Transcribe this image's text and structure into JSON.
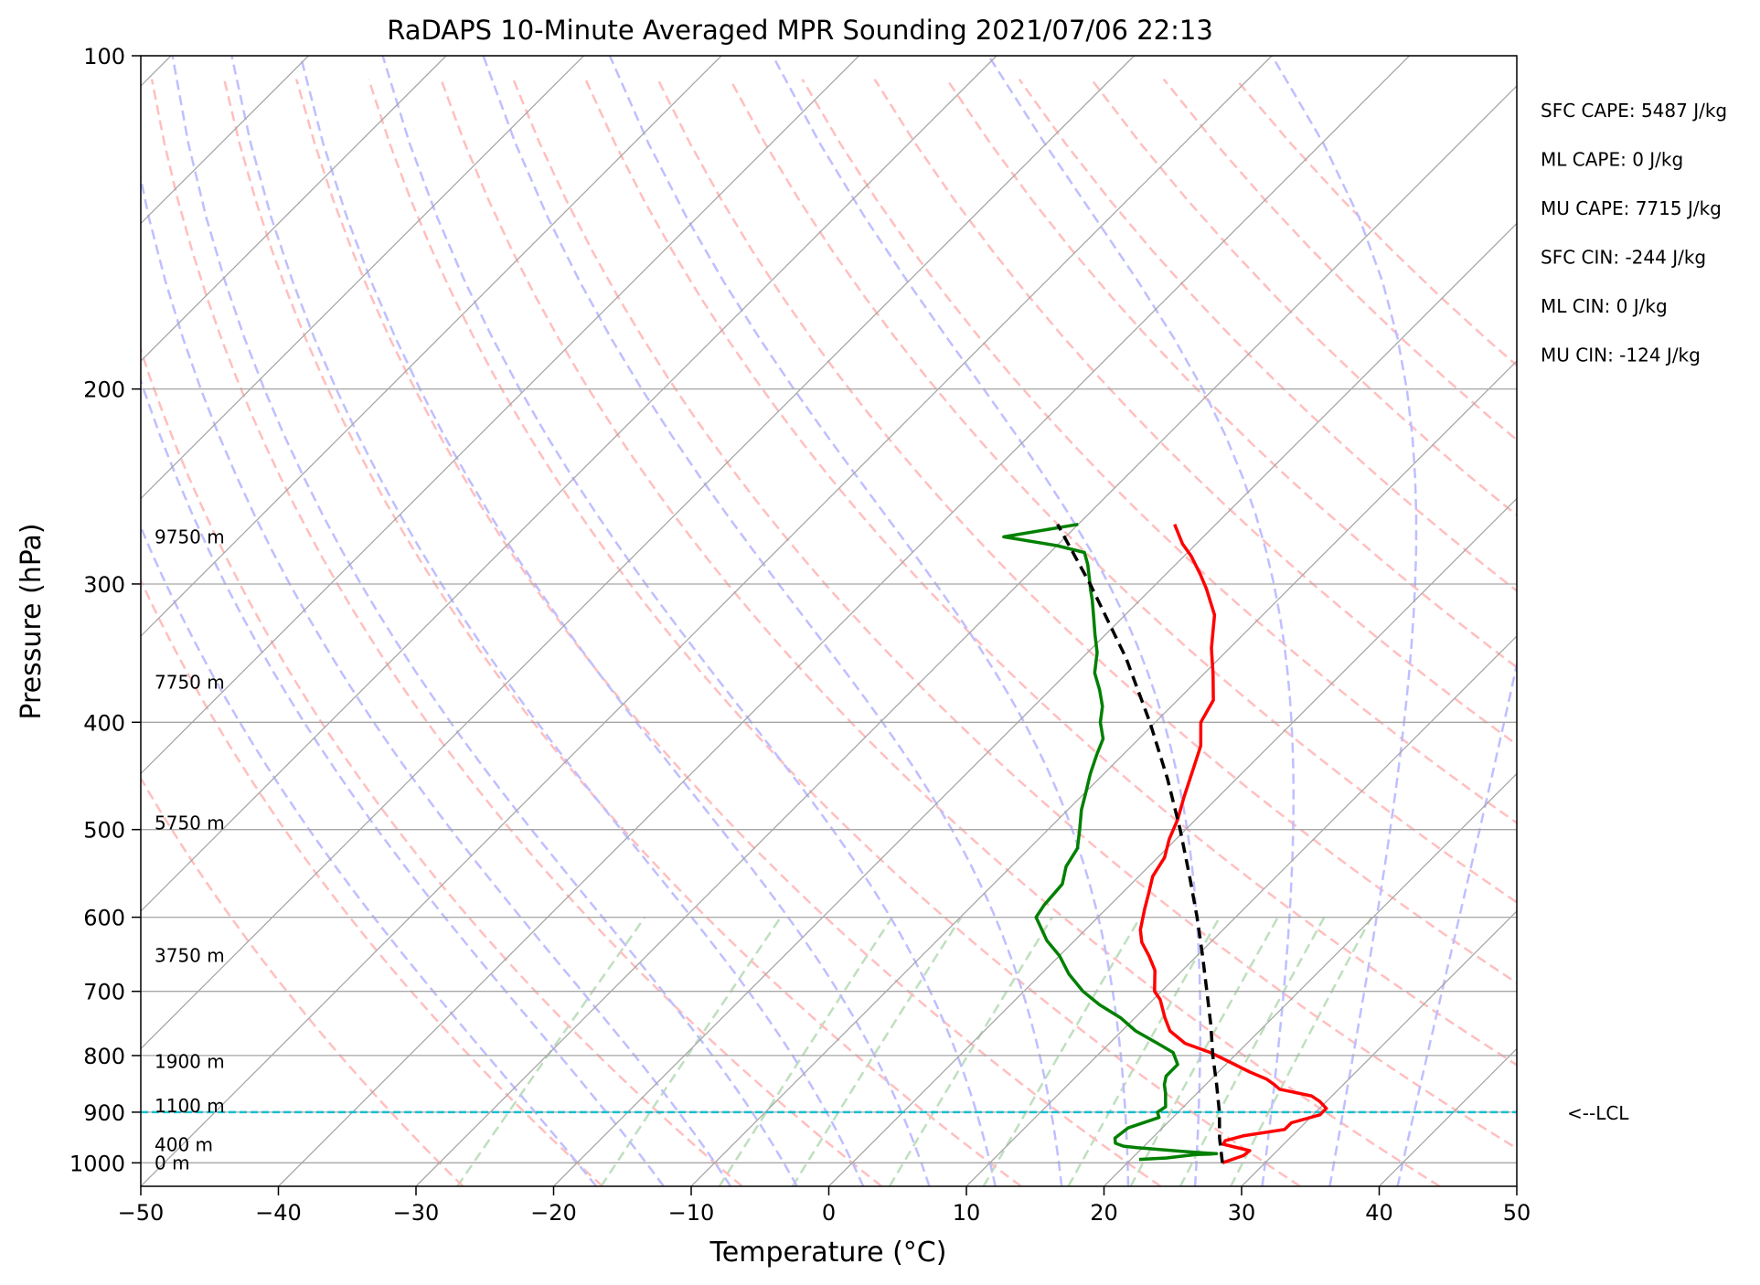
{
  "chart_data": {
    "type": "line",
    "title": "RaDAPS 10-Minute Averaged MPR Sounding 2021/07/06 22:13",
    "xlabel": "Temperature (°C)",
    "ylabel": "Pressure (hPa)",
    "xlim": [
      -50,
      50
    ],
    "ylim": [
      1050,
      100
    ],
    "y_scale": "log",
    "skew": true,
    "x_ticks": [
      "−50",
      "−40",
      "−30",
      "−20",
      "−10",
      "0",
      "10",
      "20",
      "30",
      "40",
      "50"
    ],
    "y_ticks": [
      "100",
      "200",
      "300",
      "400",
      "500",
      "600",
      "700",
      "800",
      "900",
      "1000"
    ],
    "height_labels": [
      {
        "text": "9750 m",
        "p": 272
      },
      {
        "text": "7750 m",
        "p": 368
      },
      {
        "text": "5750 m",
        "p": 493
      },
      {
        "text": "3750 m",
        "p": 650
      },
      {
        "text": "1900 m",
        "p": 810
      },
      {
        "text": "1100 m",
        "p": 888
      },
      {
        "text": "400 m",
        "p": 963
      },
      {
        "text": "0 m",
        "p": 1000
      }
    ],
    "stats": [
      "SFC CAPE: 5487 J/kg",
      "ML CAPE: 0 J/kg",
      "MU CAPE: 7715 J/kg",
      "SFC CIN: -244 J/kg",
      "ML CIN: 0 J/kg",
      "MU CIN: -124 J/kg"
    ],
    "lcl": {
      "label": "<--LCL",
      "p": 900,
      "color": "#17becf"
    },
    "series": [
      {
        "color": "#ff0000",
        "points": [
          [
            1000,
            26.9
          ],
          [
            985,
            27.9
          ],
          [
            975,
            28.0
          ],
          [
            962,
            25.6
          ],
          [
            955,
            25.5
          ],
          [
            945,
            26.5
          ],
          [
            933,
            29.0
          ],
          [
            920,
            29.0
          ],
          [
            905,
            30.5
          ],
          [
            893,
            30.5
          ],
          [
            880,
            29.5
          ],
          [
            870,
            28.5
          ],
          [
            858,
            25.7
          ],
          [
            850,
            25.0
          ],
          [
            840,
            24.0
          ],
          [
            828,
            22.3
          ],
          [
            810,
            20.0
          ],
          [
            795,
            18.0
          ],
          [
            780,
            15.5
          ],
          [
            760,
            13.5
          ],
          [
            740,
            12.2
          ],
          [
            712,
            10.5
          ],
          [
            700,
            9.5
          ],
          [
            670,
            8.0
          ],
          [
            650,
            6.5
          ],
          [
            632,
            5.0
          ],
          [
            616,
            4.0
          ],
          [
            590,
            2.8
          ],
          [
            572,
            2.0
          ],
          [
            551,
            1.0
          ],
          [
            530,
            0.5
          ],
          [
            510,
            -0.5
          ],
          [
            490,
            -1.3
          ],
          [
            467,
            -2.5
          ],
          [
            440,
            -3.9
          ],
          [
            420,
            -5.0
          ],
          [
            400,
            -6.7
          ],
          [
            382,
            -7.4
          ],
          [
            362,
            -9.3
          ],
          [
            343,
            -11.3
          ],
          [
            320,
            -13.5
          ],
          [
            303,
            -16.0
          ],
          [
            294,
            -17.5
          ],
          [
            283,
            -19.5
          ],
          [
            276,
            -21.0
          ],
          [
            265,
            -23.0
          ]
        ]
      },
      {
        "color": "#008000",
        "points": [
          [
            993,
            20.6
          ],
          [
            990,
            22.5
          ],
          [
            985,
            23.8
          ],
          [
            983,
            24.4
          ],
          [
            982,
            25.4
          ],
          [
            981,
            25.8
          ],
          [
            980,
            25.1
          ],
          [
            976,
            23.0
          ],
          [
            971,
            20.6
          ],
          [
            969,
            19.6
          ],
          [
            966,
            18.5
          ],
          [
            960,
            17.7
          ],
          [
            950,
            17.3
          ],
          [
            940,
            17.4
          ],
          [
            930,
            17.5
          ],
          [
            910,
            19.0
          ],
          [
            900,
            18.5
          ],
          [
            890,
            18.7
          ],
          [
            880,
            18.3
          ],
          [
            865,
            17.7
          ],
          [
            850,
            17.0
          ],
          [
            835,
            16.5
          ],
          [
            815,
            16.5
          ],
          [
            795,
            15.3
          ],
          [
            780,
            13.5
          ],
          [
            760,
            11.0
          ],
          [
            740,
            9.0
          ],
          [
            720,
            6.5
          ],
          [
            700,
            4.3
          ],
          [
            675,
            2.0
          ],
          [
            650,
            0.0
          ],
          [
            630,
            -2.0
          ],
          [
            600,
            -4.5
          ],
          [
            585,
            -4.8
          ],
          [
            560,
            -5.0
          ],
          [
            540,
            -6.0
          ],
          [
            520,
            -6.5
          ],
          [
            500,
            -7.7
          ],
          [
            480,
            -9.0
          ],
          [
            462,
            -10.0
          ],
          [
            445,
            -11.0
          ],
          [
            428,
            -11.9
          ],
          [
            414,
            -12.6
          ],
          [
            400,
            -14.0
          ],
          [
            387,
            -15.0
          ],
          [
            374,
            -16.4
          ],
          [
            361,
            -18.0
          ],
          [
            346,
            -19.3
          ],
          [
            333,
            -20.8
          ],
          [
            320,
            -22.3
          ],
          [
            310,
            -23.5
          ],
          [
            304,
            -24.3
          ],
          [
            297,
            -25.2
          ],
          [
            288,
            -26.4
          ],
          [
            281,
            -27.5
          ],
          [
            277,
            -30.0
          ],
          [
            272,
            -34.5
          ],
          [
            265,
            -30.0
          ]
        ]
      },
      {
        "color": "#000000",
        "dashed": true,
        "points": [
          [
            1000,
            26.9
          ],
          [
            950,
            24.9
          ],
          [
            900,
            23.0
          ],
          [
            850,
            20.8
          ],
          [
            800,
            18.4
          ],
          [
            750,
            16.0
          ],
          [
            700,
            13.3
          ],
          [
            650,
            10.4
          ],
          [
            600,
            7.2
          ],
          [
            550,
            3.6
          ],
          [
            500,
            -0.4
          ],
          [
            450,
            -5.0
          ],
          [
            400,
            -10.4
          ],
          [
            350,
            -16.8
          ],
          [
            300,
            -24.8
          ],
          [
            265,
            -31.5
          ]
        ]
      }
    ],
    "background": {
      "isotherm_color": "#a6a6a6",
      "dry_adiabat_color": "#ffbfbf",
      "moist_adiabat_color": "#bfbfff",
      "mixing_ratio_color": "#bfdfbf",
      "grid_color": "#a6a6a6"
    }
  }
}
